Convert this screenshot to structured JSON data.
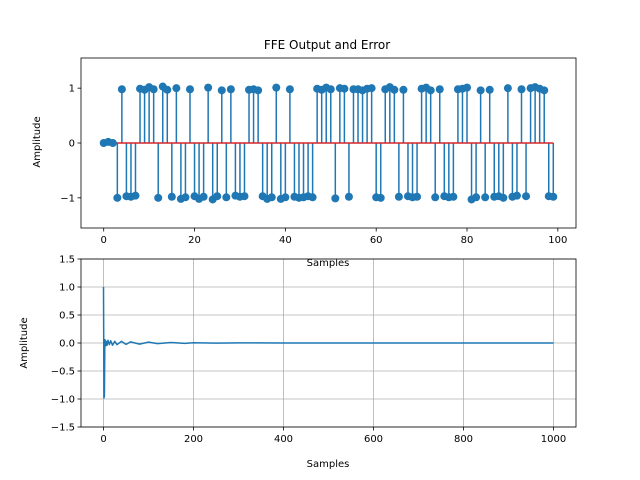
{
  "chart_data": [
    {
      "type": "stem",
      "title": "FFE Output and Error",
      "xlabel": "Samples",
      "ylabel": "Amplitude",
      "xlim": [
        -5,
        104
      ],
      "ylim": [
        -1.55,
        1.55
      ],
      "xticks": [
        0,
        20,
        40,
        60,
        80,
        100
      ],
      "yticks": [
        -1,
        0,
        1
      ],
      "grid": false,
      "colors": {
        "stem": "#1f77b4",
        "baseline": "#d62728"
      },
      "series": [
        {
          "x": [
            0,
            1,
            2,
            3,
            4,
            5,
            6,
            7,
            8,
            9,
            10,
            11,
            12,
            13,
            14,
            15,
            16,
            17,
            18,
            19,
            20,
            21,
            22,
            23,
            24,
            25,
            26,
            27,
            28,
            29,
            30,
            31,
            32,
            33,
            34,
            35,
            36,
            37,
            38,
            39,
            40,
            41,
            42,
            43,
            44,
            45,
            46,
            47,
            48,
            49,
            50,
            51,
            52,
            53,
            54,
            55,
            56,
            57,
            58,
            59,
            60,
            61,
            62,
            63,
            64,
            65,
            66,
            67,
            68,
            69,
            70,
            71,
            72,
            73,
            74,
            75,
            76,
            77,
            78,
            79,
            80,
            81,
            82,
            83,
            84,
            85,
            86,
            87,
            88,
            89,
            90,
            91,
            92,
            93,
            94,
            95,
            96,
            97,
            98,
            99
          ],
          "values": [
            0.0,
            0.02,
            0.0,
            -1.0,
            0.98,
            -0.97,
            -0.98,
            -0.96,
            0.99,
            0.97,
            1.02,
            0.98,
            -1.0,
            1.03,
            0.97,
            -0.98,
            1.0,
            -1.02,
            -0.99,
            0.98,
            -0.97,
            -1.02,
            -0.98,
            1.01,
            -1.03,
            -0.97,
            0.96,
            -0.99,
            0.98,
            -0.96,
            -0.98,
            -0.97,
            0.97,
            0.98,
            0.96,
            -0.97,
            -1.02,
            -0.99,
            1.01,
            -1.02,
            -0.99,
            0.98,
            -0.98,
            -1.0,
            -0.99,
            -0.97,
            -0.99,
            0.99,
            0.97,
            1.01,
            0.98,
            -1.01,
            1.0,
            0.99,
            -0.98,
            0.98,
            0.98,
            0.96,
            0.99,
            1.0,
            -0.99,
            -1.0,
            0.98,
            1.02,
            0.97,
            -0.98,
            0.97,
            -0.97,
            -0.99,
            -0.98,
            0.99,
            1.01,
            0.96,
            -0.99,
            0.98,
            -0.97,
            -0.99,
            -0.98,
            0.98,
            0.99,
            1.01,
            -1.03,
            -0.99,
            0.96,
            -0.99,
            0.97,
            -0.98,
            -0.97,
            -1.0,
            1.0,
            -0.98,
            -0.96,
            0.98,
            -0.97,
            1.0,
            1.02,
            0.99,
            0.96,
            -0.97,
            -0.98
          ]
        }
      ]
    },
    {
      "type": "line",
      "xlabel": "Samples",
      "ylabel": "Amplitude",
      "xlim": [
        -50,
        1050
      ],
      "ylim": [
        -1.5,
        1.5
      ],
      "xticks": [
        0,
        200,
        400,
        600,
        800,
        1000
      ],
      "yticks": [
        -1.5,
        -1.0,
        -0.5,
        0.0,
        0.5,
        1.0,
        1.5
      ],
      "ytick_labels": [
        "−1.5",
        "−1.0",
        "−0.5",
        "0.0",
        "0.5",
        "1.0",
        "1.5"
      ],
      "grid": true,
      "colors": {
        "line": "#1f77b4"
      },
      "series": [
        {
          "x": [
            0,
            1,
            2,
            3,
            4,
            5,
            6,
            8,
            10,
            13,
            16,
            20,
            25,
            30,
            40,
            50,
            60,
            80,
            100,
            120,
            150,
            180,
            200,
            250,
            300,
            400,
            500,
            600,
            700,
            800,
            900,
            1000
          ],
          "values": [
            1.0,
            -0.98,
            -0.95,
            0.06,
            0.04,
            -0.05,
            0.03,
            -0.04,
            0.05,
            -0.03,
            0.04,
            -0.04,
            0.03,
            -0.03,
            0.03,
            -0.025,
            0.02,
            -0.02,
            0.015,
            -0.012,
            0.008,
            -0.006,
            0.005,
            -0.003,
            0.002,
            0.001,
            0.0,
            0.0,
            0.0,
            0.0,
            0.0,
            0.0
          ]
        }
      ]
    }
  ]
}
